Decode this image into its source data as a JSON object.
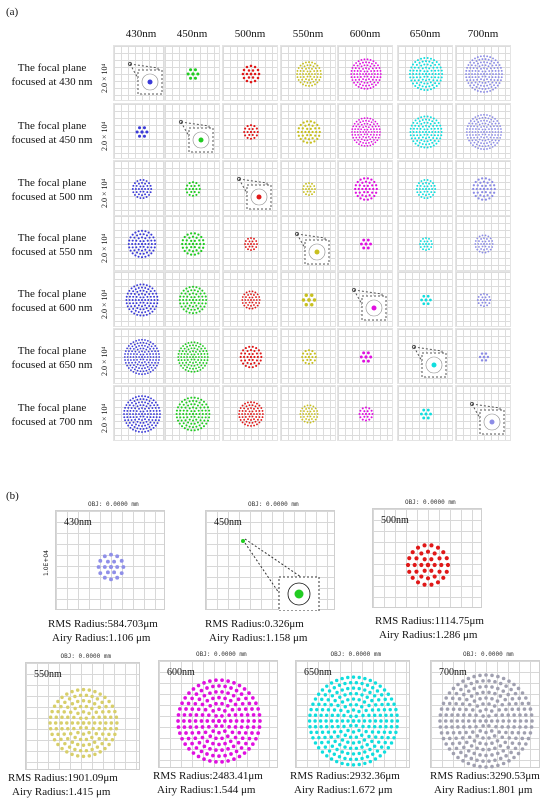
{
  "panel_a": {
    "tag": "(a)",
    "wavelengths": [
      "430nm",
      "450nm",
      "500nm",
      "550nm",
      "600nm",
      "650nm",
      "700nm"
    ],
    "scale_label": "2.0 × 10⁴",
    "rows": [
      {
        "line1": "The focal plane",
        "line2": "focused at 430 nm"
      },
      {
        "line1": "The focal plane",
        "line2": "focused at 450 nm"
      },
      {
        "line1": "The focal plane",
        "line2": "focused at 500 nm"
      },
      {
        "line1": "The focal plane",
        "line2": "focused at 550 nm"
      },
      {
        "line1": "The focal plane",
        "line2": "focused at 600 nm"
      },
      {
        "line1": "The focal plane",
        "line2": "focused at 650 nm"
      },
      {
        "line1": "The focal plane",
        "line2": "focused at 700 nm"
      }
    ],
    "colors": [
      "#3a3ad8",
      "#22cc22",
      "#e01818",
      "#c8c020",
      "#e010e0",
      "#10dede",
      "#8c8ce6"
    ],
    "spot_size_relative": [
      [
        0,
        0.18,
        0.38,
        0.62,
        0.8,
        0.88,
        1.0
      ],
      [
        0.18,
        0,
        0.3,
        0.55,
        0.75,
        0.85,
        0.95
      ],
      [
        0.45,
        0.3,
        0,
        0.25,
        0.55,
        0.45,
        0.55
      ],
      [
        0.7,
        0.55,
        0.25,
        0,
        0.16,
        0.25,
        0.42
      ],
      [
        0.85,
        0.7,
        0.42,
        0.22,
        0,
        0.15,
        0.26
      ],
      [
        0.95,
        0.8,
        0.52,
        0.3,
        0.17,
        0,
        0.12
      ],
      [
        1.0,
        0.9,
        0.62,
        0.42,
        0.28,
        0.16,
        0
      ]
    ]
  },
  "panel_b": {
    "tag": "(b)",
    "obj_label": "OBJ: 0.0000 mm",
    "y_axis_label": "1.0E+04",
    "plots": [
      {
        "wl": "430nm",
        "rms": "RMS Radius:584.703μm",
        "airy": "Airy  Radius:1.106 μm",
        "color": "#8f8fe8",
        "spot_size": 0.22
      },
      {
        "wl": "450nm",
        "rms": "RMS Radius:0.326μm",
        "airy": "Airy  Radius:1.158 μm",
        "color": "#22cc22",
        "spot_size": 0.02
      },
      {
        "wl": "500nm",
        "rms": "RMS Radius:1114.75μm",
        "airy": "Airy  Radius:1.286 μm",
        "color": "#e01818",
        "spot_size": 0.42
      },
      {
        "wl": "550nm",
        "rms": "RMS Radius:1901.09μm",
        "airy": "Airy  Radius:1.415 μm",
        "color": "#d8cf6a",
        "spot_size": 0.7
      },
      {
        "wl": "600nm",
        "rms": "RMS Radius:2483.41μm",
        "airy": "Airy  Radius:1.544 μm",
        "color": "#e010e0",
        "spot_size": 0.88
      },
      {
        "wl": "650nm",
        "rms": "RMS Radius:2932.36μm",
        "airy": "Airy  Radius:1.672 μm",
        "color": "#10dede",
        "spot_size": 0.95
      },
      {
        "wl": "700nm",
        "rms": "RMS Radius:3290.53μm",
        "airy": "Airy  Radius:1.801 μm",
        "color": "#a0a0b0",
        "spot_size": 1.0
      }
    ]
  }
}
